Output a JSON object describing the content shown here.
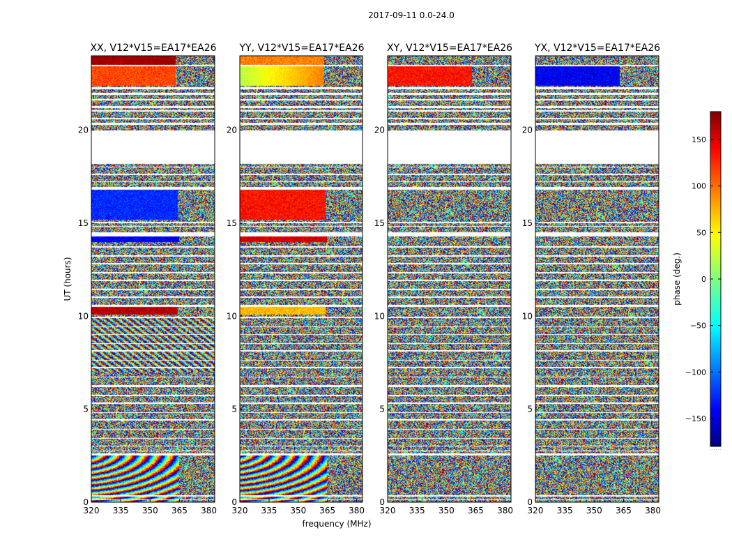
{
  "figure_title": "2017-09-11 0.0-24.0",
  "colorbar_label": "phase (deg.)",
  "colorbar_dots": "......",
  "chart_data": [
    {
      "type": "heatmap",
      "title": "XX, V12*V15=EA17*EA26",
      "xlabel": "",
      "ylabel": "UT (hours)",
      "xlim": [
        320,
        383
      ],
      "ylim": [
        0,
        24
      ],
      "xticks": [
        320,
        335,
        350,
        365,
        380
      ],
      "yticks": [
        0,
        5,
        10,
        15,
        20
      ],
      "ytick_labels": [
        "0",
        "5",
        "10",
        "15",
        "20"
      ],
      "coherent_bands": [
        {
          "ut": [
            0.0,
            2.5
          ],
          "pattern": "fringe-arcs",
          "freq_max": 365
        },
        {
          "ut": [
            7.0,
            10.0
          ],
          "pattern": "fringe-diagonal",
          "freq_max": 383
        },
        {
          "ut": [
            14.0,
            14.3
          ],
          "pattern": "solid",
          "phase": -140,
          "freq_max": 365
        },
        {
          "ut": [
            15.2,
            16.8
          ],
          "pattern": "solid",
          "phase": -120,
          "freq_max": 364
        },
        {
          "ut": [
            10.1,
            10.5
          ],
          "pattern": "solid",
          "phase": 160,
          "freq_max": 364
        },
        {
          "ut": [
            22.4,
            23.5
          ],
          "pattern": "solid",
          "phase": 110,
          "freq_max": 363
        },
        {
          "ut": [
            23.5,
            24.0
          ],
          "pattern": "solid",
          "phase": 170,
          "freq_max": 363
        }
      ]
    },
    {
      "type": "heatmap",
      "title": "YY, V12*V15=EA17*EA26",
      "xlabel": "frequency (MHz)",
      "ylabel": "",
      "xlim": [
        320,
        383
      ],
      "ylim": [
        0,
        24
      ],
      "xticks": [
        320,
        335,
        350,
        365,
        380
      ],
      "yticks": [
        0,
        5,
        10,
        15,
        20
      ],
      "ytick_labels": [
        "0",
        "5",
        "10",
        "15",
        "20"
      ],
      "coherent_bands": [
        {
          "ut": [
            0.0,
            2.5
          ],
          "pattern": "fringe-arcs",
          "freq_max": 365
        },
        {
          "ut": [
            15.2,
            16.8
          ],
          "pattern": "solid",
          "phase": 130,
          "freq_max": 364
        },
        {
          "ut": [
            14.0,
            14.3
          ],
          "pattern": "solid",
          "phase": 150,
          "freq_max": 365
        },
        {
          "ut": [
            10.1,
            10.5
          ],
          "pattern": "solid",
          "phase": 70,
          "freq_max": 364
        },
        {
          "ut": [
            22.4,
            23.5
          ],
          "pattern": "gradient",
          "phase_from": 20,
          "phase_to": 90,
          "freq_max": 363
        },
        {
          "ut": [
            23.5,
            24.0
          ],
          "pattern": "solid",
          "phase": 90,
          "freq_max": 363
        }
      ]
    },
    {
      "type": "heatmap",
      "title": "XY, V12*V15=EA17*EA26",
      "xlabel": "",
      "ylabel": "",
      "xlim": [
        320,
        383
      ],
      "ylim": [
        0,
        24
      ],
      "xticks": [
        320,
        335,
        350,
        365,
        380
      ],
      "yticks": [
        0,
        5,
        10,
        15,
        20
      ],
      "ytick_labels": [
        "0",
        "5",
        "10",
        "15",
        "20"
      ],
      "coherent_bands": [
        {
          "ut": [
            22.4,
            23.5
          ],
          "pattern": "solid",
          "phase": 130,
          "freq_max": 363
        }
      ]
    },
    {
      "type": "heatmap",
      "title": "YX, V12*V15=EA17*EA26",
      "xlabel": "",
      "ylabel": "",
      "xlim": [
        320,
        383
      ],
      "ylim": [
        0,
        24
      ],
      "xticks": [
        320,
        335,
        350,
        365,
        380
      ],
      "yticks": [
        0,
        5,
        10,
        15,
        20
      ],
      "ytick_labels": [
        "0",
        "5",
        "10",
        "15",
        "20"
      ],
      "coherent_bands": [
        {
          "ut": [
            22.4,
            23.5
          ],
          "pattern": "solid",
          "phase": -140,
          "freq_max": 363
        }
      ]
    }
  ],
  "flagged_ut_ranges": [
    [
      0.1,
      0.16
    ],
    [
      0.3,
      0.36
    ],
    [
      2.52,
      2.62
    ],
    [
      2.72,
      2.78
    ],
    [
      3.0,
      3.05
    ],
    [
      3.4,
      3.46
    ],
    [
      3.9,
      3.95
    ],
    [
      4.4,
      4.46
    ],
    [
      4.8,
      4.85
    ],
    [
      5.3,
      5.36
    ],
    [
      5.7,
      5.76
    ],
    [
      6.2,
      6.3
    ],
    [
      6.7,
      6.75
    ],
    [
      7.2,
      7.26
    ],
    [
      7.6,
      7.65
    ],
    [
      8.1,
      8.16
    ],
    [
      8.5,
      8.56
    ],
    [
      9.0,
      9.05
    ],
    [
      9.4,
      9.46
    ],
    [
      9.9,
      9.96
    ],
    [
      10.5,
      10.6
    ],
    [
      11.0,
      11.05
    ],
    [
      11.4,
      11.46
    ],
    [
      11.9,
      11.95
    ],
    [
      12.3,
      12.36
    ],
    [
      12.8,
      12.85
    ],
    [
      13.2,
      13.26
    ],
    [
      13.7,
      13.76
    ],
    [
      14.3,
      14.5
    ],
    [
      14.8,
      14.86
    ],
    [
      15.0,
      15.06
    ],
    [
      16.8,
      16.95
    ],
    [
      17.2,
      17.26
    ],
    [
      17.6,
      17.66
    ],
    [
      18.0,
      18.05
    ],
    [
      18.2,
      20.0
    ],
    [
      20.3,
      20.4
    ],
    [
      20.6,
      20.66
    ],
    [
      21.0,
      21.06
    ],
    [
      21.2,
      21.3
    ],
    [
      21.6,
      21.66
    ],
    [
      21.9,
      22.0
    ],
    [
      22.2,
      22.3
    ],
    [
      23.45,
      23.52
    ]
  ],
  "colorbar": {
    "vmin": -180,
    "vmax": 180,
    "ticks": [
      150,
      100,
      50,
      0,
      -50,
      -100,
      -150
    ],
    "tick_labels": [
      "150",
      "100",
      "50",
      "0",
      "−50",
      "−100",
      "−150"
    ]
  }
}
